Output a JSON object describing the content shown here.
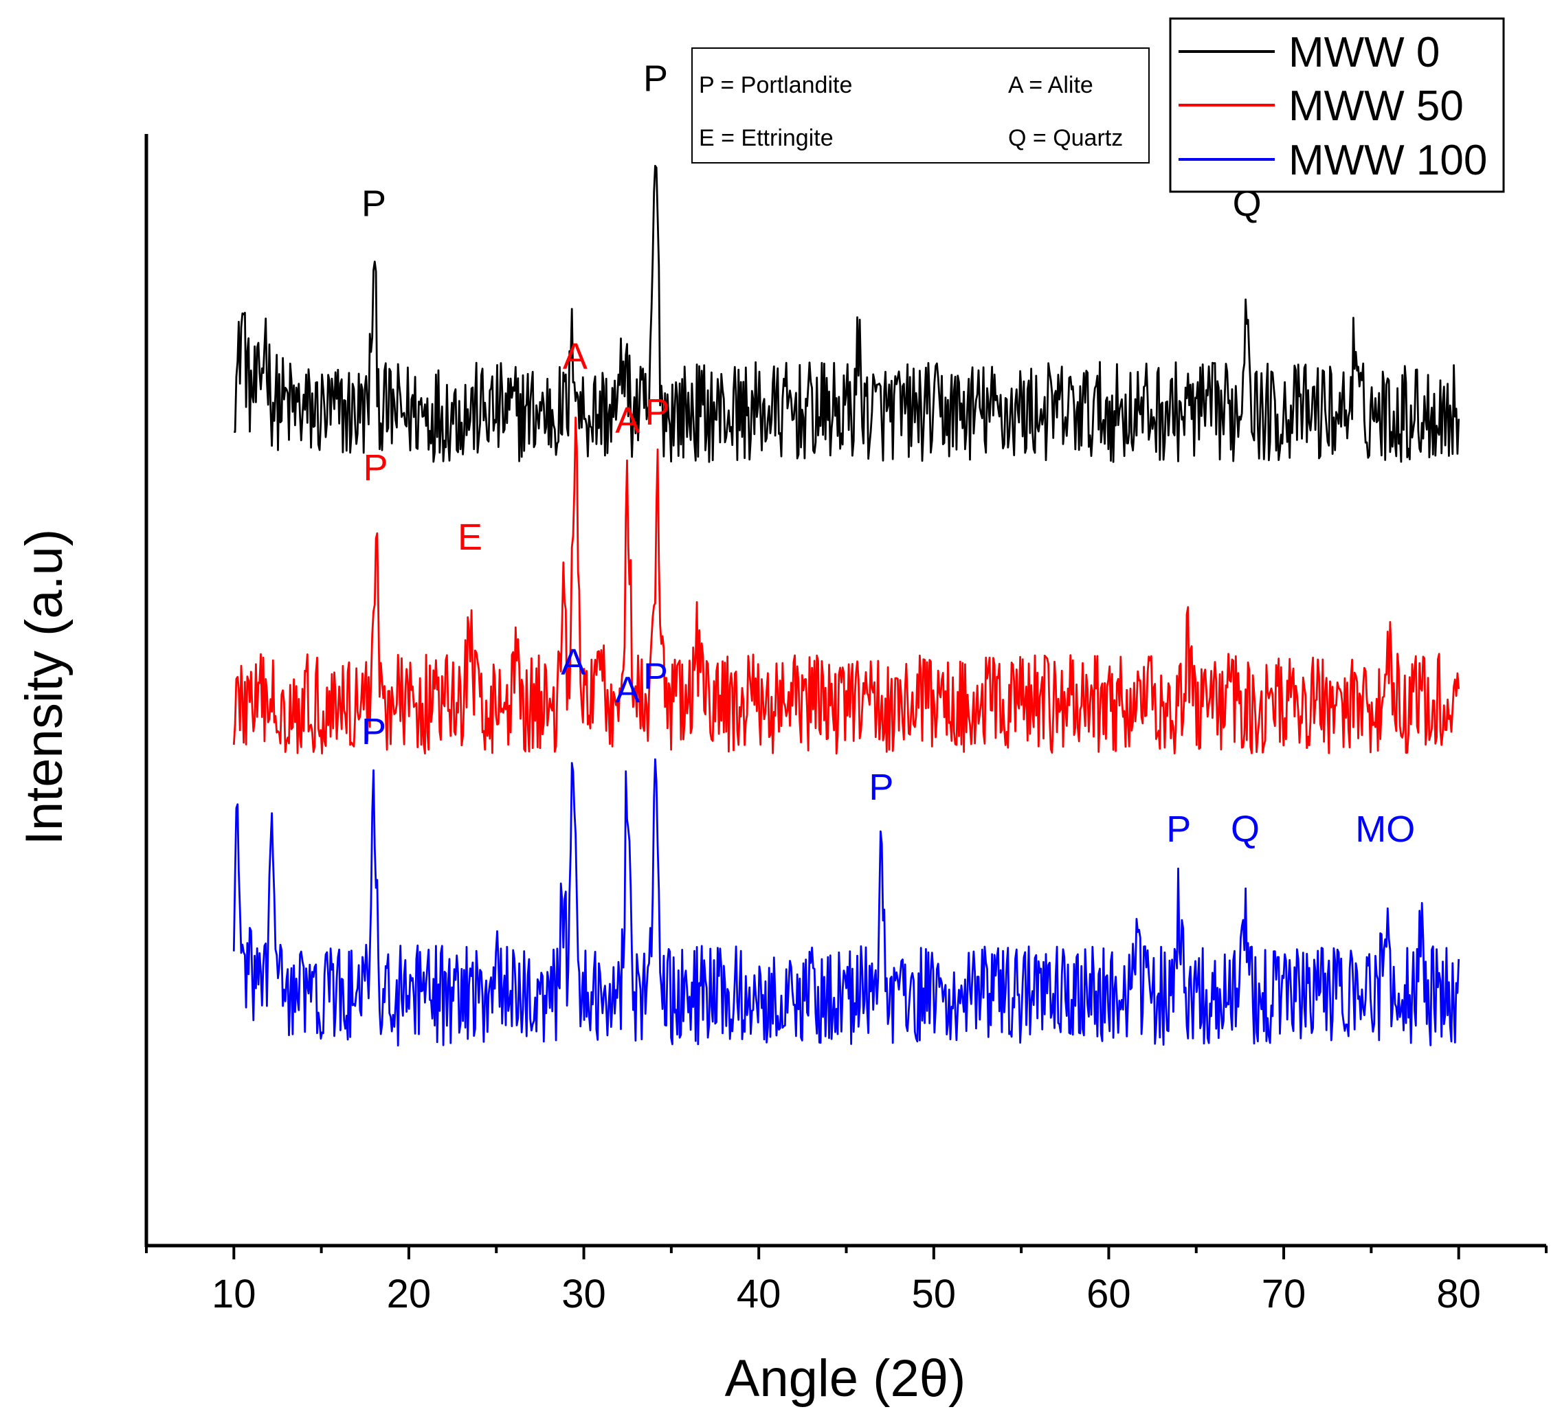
{
  "chart_data": {
    "type": "line",
    "title": "",
    "xlabel": "Angle (2θ)",
    "ylabel": "Intensity (a.u)",
    "xlim": [
      5,
      85
    ],
    "xticks": [
      10,
      20,
      30,
      40,
      50,
      60,
      70,
      80
    ],
    "ylim": [
      0,
      4
    ],
    "yticks": [],
    "grid": false,
    "legend_position": "top-right",
    "phase_key": [
      {
        "text": "P = Portlandite"
      },
      {
        "text": "A = Alite"
      },
      {
        "text": "E = Ettringite"
      },
      {
        "text": "Q = Quartz"
      }
    ],
    "series": [
      {
        "name": "MWW 0",
        "color": "#000000",
        "baseline": 3.0,
        "x_range": [
          10,
          80
        ],
        "noise_amplitude": 0.18,
        "peaks": [
          {
            "x": 10.5,
            "height": 0.25
          },
          {
            "x": 11.8,
            "height": 0.22
          },
          {
            "x": 18.0,
            "height": 0.45,
            "label": "P"
          },
          {
            "x": 29.4,
            "height": 0.25
          },
          {
            "x": 32.3,
            "height": 0.22
          },
          {
            "x": 34.1,
            "height": 0.9,
            "label": "P"
          },
          {
            "x": 45.7,
            "height": 0.2
          },
          {
            "x": 67.9,
            "height": 0.45,
            "label": "Q"
          },
          {
            "x": 74.0,
            "height": 0.18
          }
        ]
      },
      {
        "name": "MWW 50",
        "color": "#ff0000",
        "baseline": 1.95,
        "x_range": [
          10,
          80
        ],
        "noise_amplitude": 0.18,
        "peaks": [
          {
            "x": 18.1,
            "height": 0.55,
            "label": "P"
          },
          {
            "x": 23.5,
            "height": 0.3,
            "label": "E"
          },
          {
            "x": 26.2,
            "height": 0.22
          },
          {
            "x": 28.8,
            "height": 0.35
          },
          {
            "x": 29.5,
            "height": 0.95,
            "label": "A"
          },
          {
            "x": 31.0,
            "height": 0.25
          },
          {
            "x": 32.5,
            "height": 0.72,
            "label": "A"
          },
          {
            "x": 34.2,
            "height": 0.75,
            "label": "P"
          },
          {
            "x": 36.5,
            "height": 0.2
          },
          {
            "x": 64.5,
            "height": 0.18
          },
          {
            "x": 76.0,
            "height": 0.15
          }
        ]
      },
      {
        "name": "MWW 100",
        "color": "#0000ff",
        "baseline": 0.9,
        "x_range": [
          10,
          80
        ],
        "noise_amplitude": 0.18,
        "peaks": [
          {
            "x": 10.2,
            "height": 0.45
          },
          {
            "x": 12.2,
            "height": 0.5
          },
          {
            "x": 18.0,
            "height": 0.65,
            "label": "P"
          },
          {
            "x": 25.0,
            "height": 0.2
          },
          {
            "x": 28.8,
            "height": 0.35
          },
          {
            "x": 29.4,
            "height": 0.9,
            "label": "A"
          },
          {
            "x": 32.5,
            "height": 0.8,
            "label": "A"
          },
          {
            "x": 34.1,
            "height": 0.85,
            "label": "P"
          },
          {
            "x": 47.0,
            "height": 0.45,
            "label": "P"
          },
          {
            "x": 61.5,
            "height": 0.25
          },
          {
            "x": 64.0,
            "height": 0.3,
            "label": "P"
          },
          {
            "x": 67.8,
            "height": 0.3,
            "label": "Q"
          },
          {
            "x": 75.8,
            "height": 0.3,
            "label": "MO"
          },
          {
            "x": 77.8,
            "height": 0.25
          }
        ]
      }
    ]
  }
}
